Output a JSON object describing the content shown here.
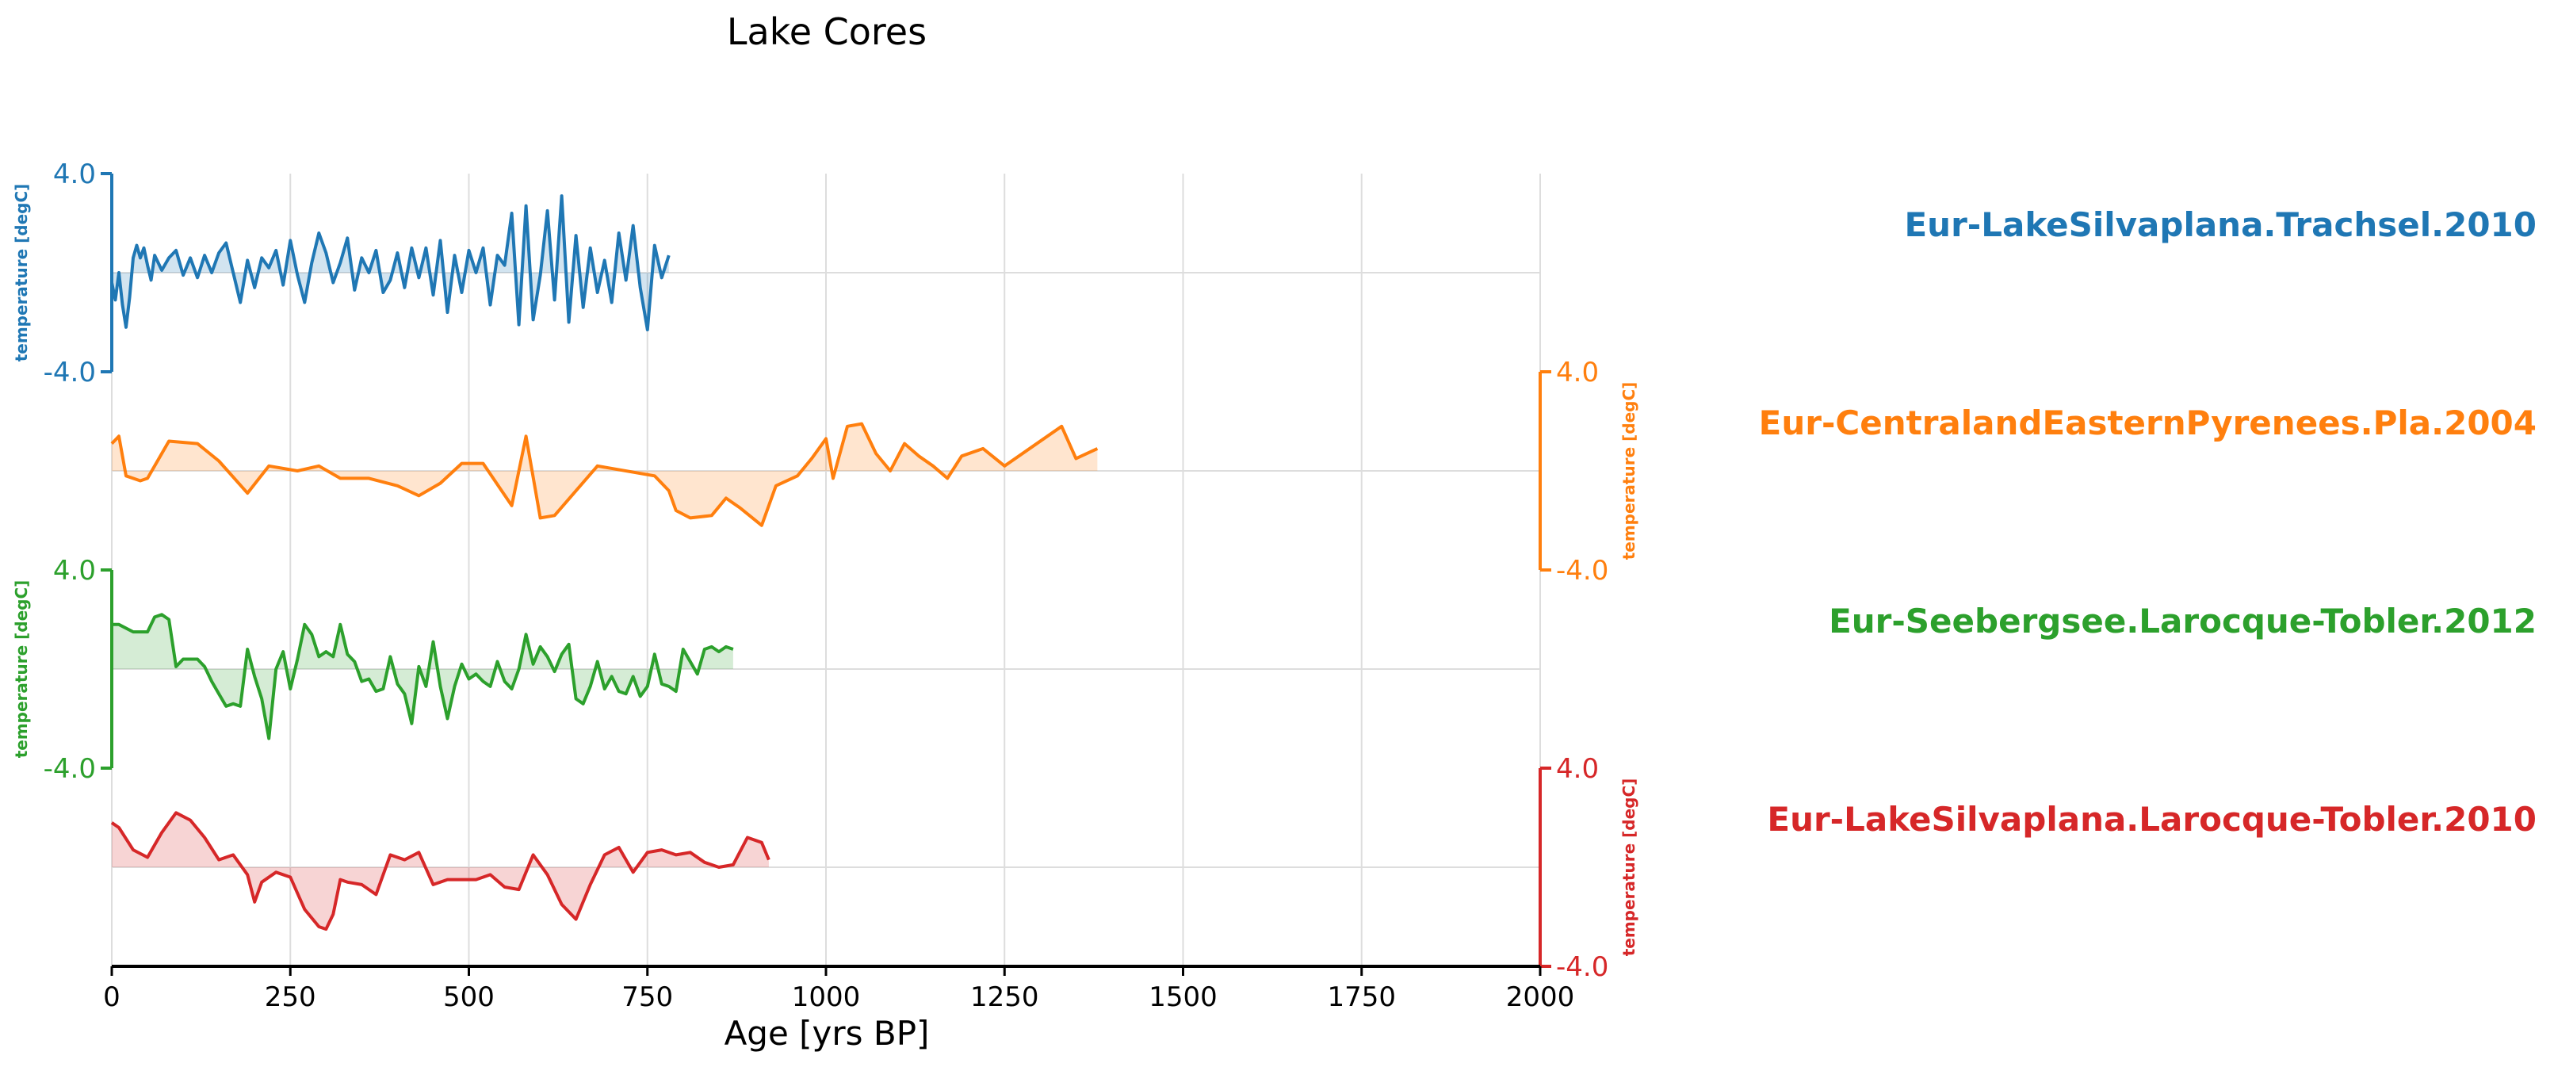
{
  "chart_data": {
    "type": "line",
    "title": "Lake Cores",
    "xlabel": "Age [yrs BP]",
    "xlim": [
      0,
      2000
    ],
    "xticks": [
      0,
      250,
      500,
      750,
      1000,
      1250,
      1500,
      1750,
      2000
    ],
    "x_grid": true,
    "series_label_placement": "right",
    "series": [
      {
        "name": "Eur-LakeSilvaplana.Trachsel.2010",
        "color": "#1f77b4",
        "ylabel": "temperature [degC]",
        "ylim": [
          -4.0,
          4.0
        ],
        "ytick_labels": [
          "4.0",
          "-4.0"
        ],
        "axis_side": "left",
        "x": [
          0,
          5,
          10,
          15,
          20,
          25,
          30,
          35,
          40,
          45,
          50,
          55,
          60,
          70,
          80,
          90,
          100,
          110,
          120,
          130,
          140,
          150,
          160,
          170,
          180,
          190,
          200,
          210,
          220,
          230,
          240,
          250,
          260,
          270,
          280,
          290,
          300,
          310,
          320,
          330,
          340,
          350,
          360,
          370,
          380,
          390,
          400,
          410,
          420,
          430,
          440,
          450,
          460,
          470,
          480,
          490,
          500,
          510,
          520,
          530,
          540,
          550,
          560,
          570,
          580,
          590,
          600,
          610,
          620,
          630,
          640,
          650,
          660,
          670,
          680,
          690,
          700,
          710,
          720,
          730,
          740,
          750,
          760,
          770,
          780
        ],
        "y": [
          -0.4,
          -1.1,
          0.0,
          -1.3,
          -2.2,
          -1.0,
          0.6,
          1.1,
          0.6,
          1.0,
          0.3,
          -0.3,
          0.7,
          0.1,
          0.6,
          0.9,
          -0.1,
          0.6,
          -0.2,
          0.7,
          0.0,
          0.8,
          1.2,
          0.0,
          -1.2,
          0.5,
          -0.6,
          0.6,
          0.2,
          0.9,
          -0.5,
          1.3,
          -0.1,
          -1.2,
          0.4,
          1.6,
          0.8,
          -0.4,
          0.4,
          1.4,
          -0.7,
          0.6,
          0.0,
          0.9,
          -0.8,
          -0.3,
          0.8,
          -0.6,
          1.0,
          -0.2,
          1.0,
          -0.9,
          1.3,
          -1.6,
          0.7,
          -0.8,
          0.9,
          0.0,
          1.0,
          -1.3,
          0.7,
          0.3,
          2.4,
          -2.1,
          2.7,
          -1.9,
          -0.1,
          2.5,
          -1.1,
          3.1,
          -2.0,
          1.5,
          -1.4,
          1.0,
          -0.8,
          0.5,
          -1.2,
          1.6,
          -0.3,
          1.9,
          -0.6,
          -2.3,
          1.1,
          -0.2,
          0.7
        ]
      },
      {
        "name": "Eur-CentralandEasternPyrenees.Pla.2004",
        "color": "#ff7f0e",
        "ylabel": "temperature [degC]",
        "ylim": [
          -4.0,
          4.0
        ],
        "ytick_labels": [
          "4.0",
          "-4.0"
        ],
        "axis_side": "right",
        "x": [
          0,
          10,
          20,
          40,
          50,
          80,
          120,
          150,
          190,
          220,
          260,
          290,
          320,
          360,
          400,
          430,
          460,
          490,
          520,
          560,
          580,
          600,
          620,
          680,
          760,
          780,
          790,
          810,
          840,
          860,
          880,
          910,
          930,
          960,
          980,
          1000,
          1010,
          1030,
          1050,
          1070,
          1090,
          1110,
          1130,
          1150,
          1170,
          1190,
          1220,
          1250,
          1290,
          1330,
          1350,
          1380
        ],
        "y": [
          1.1,
          1.4,
          -0.2,
          -0.4,
          -0.3,
          1.2,
          1.1,
          0.4,
          -0.9,
          0.2,
          0.0,
          0.2,
          -0.3,
          -0.3,
          -0.6,
          -1.0,
          -0.5,
          0.3,
          0.3,
          -1.4,
          1.4,
          -1.9,
          -1.8,
          0.2,
          -0.2,
          -0.8,
          -1.6,
          -1.9,
          -1.8,
          -1.1,
          -1.5,
          -2.2,
          -0.6,
          -0.2,
          0.5,
          1.3,
          -0.3,
          1.8,
          1.9,
          0.7,
          0.0,
          1.1,
          0.6,
          0.2,
          -0.3,
          0.6,
          0.9,
          0.2,
          1.0,
          1.8,
          0.5,
          0.9
        ]
      },
      {
        "name": "Eur-Seebergsee.Larocque-Tobler.2012",
        "color": "#2ca02c",
        "ylabel": "temperature [degC]",
        "ylim": [
          -4.0,
          4.0
        ],
        "ytick_labels": [
          "4.0",
          "-4.0"
        ],
        "axis_side": "left",
        "x": [
          0,
          10,
          30,
          50,
          60,
          70,
          80,
          90,
          100,
          110,
          120,
          130,
          140,
          150,
          160,
          170,
          180,
          190,
          200,
          210,
          220,
          230,
          240,
          250,
          260,
          270,
          280,
          290,
          300,
          310,
          320,
          330,
          340,
          350,
          360,
          370,
          380,
          390,
          400,
          410,
          420,
          430,
          440,
          450,
          460,
          470,
          480,
          490,
          500,
          510,
          520,
          530,
          540,
          550,
          560,
          570,
          580,
          590,
          600,
          610,
          620,
          630,
          640,
          650,
          660,
          670,
          680,
          690,
          700,
          710,
          720,
          730,
          740,
          750,
          760,
          770,
          780,
          790,
          800,
          810,
          820,
          830,
          840,
          850,
          860,
          870
        ],
        "y": [
          1.8,
          1.8,
          1.5,
          1.5,
          2.1,
          2.2,
          2.0,
          0.1,
          0.4,
          0.4,
          0.4,
          0.1,
          -0.5,
          -1.0,
          -1.5,
          -1.4,
          -1.5,
          0.8,
          -0.3,
          -1.2,
          -2.8,
          0.0,
          0.7,
          -0.8,
          0.4,
          1.8,
          1.4,
          0.5,
          0.7,
          0.5,
          1.8,
          0.6,
          0.3,
          -0.5,
          -0.4,
          -0.9,
          -0.8,
          0.5,
          -0.6,
          -1.0,
          -2.2,
          0.1,
          -0.7,
          1.1,
          -0.7,
          -2.0,
          -0.7,
          0.2,
          -0.4,
          -0.2,
          -0.5,
          -0.7,
          0.3,
          -0.5,
          -0.8,
          0.0,
          1.4,
          0.2,
          0.9,
          0.5,
          -0.1,
          0.6,
          1.0,
          -1.2,
          -1.4,
          -0.7,
          0.3,
          -0.8,
          -0.3,
          -0.9,
          -1.0,
          -0.3,
          -1.1,
          -0.7,
          0.6,
          -0.6,
          -0.7,
          -0.9,
          0.8,
          0.3,
          -0.2,
          0.8,
          0.9,
          0.7,
          0.9,
          0.8
        ]
      },
      {
        "name": "Eur-LakeSilvaplana.Larocque-Tobler.2010",
        "color": "#d62728",
        "ylabel": "temperature [degC]",
        "ylim": [
          -4.0,
          4.0
        ],
        "ytick_labels": [
          "4.0",
          "-4.0"
        ],
        "axis_side": "right",
        "x": [
          0,
          10,
          30,
          50,
          70,
          90,
          110,
          130,
          150,
          170,
          190,
          200,
          210,
          230,
          250,
          270,
          290,
          300,
          310,
          320,
          330,
          350,
          370,
          390,
          410,
          430,
          450,
          470,
          490,
          510,
          530,
          550,
          570,
          590,
          610,
          630,
          650,
          670,
          690,
          710,
          730,
          750,
          770,
          790,
          810,
          830,
          850,
          870,
          890,
          910,
          920
        ],
        "y": [
          1.8,
          1.6,
          0.7,
          0.4,
          1.4,
          2.2,
          1.9,
          1.2,
          0.3,
          0.5,
          -0.3,
          -1.4,
          -0.6,
          -0.2,
          -0.4,
          -1.7,
          -2.4,
          -2.5,
          -1.9,
          -0.5,
          -0.6,
          -0.7,
          -1.1,
          0.5,
          0.3,
          0.6,
          -0.7,
          -0.5,
          -0.5,
          -0.5,
          -0.3,
          -0.8,
          -0.9,
          0.5,
          -0.3,
          -1.5,
          -2.1,
          -0.7,
          0.5,
          0.8,
          -0.2,
          0.6,
          0.7,
          0.5,
          0.6,
          0.2,
          0.0,
          0.1,
          1.2,
          1.0,
          0.3
        ]
      }
    ]
  }
}
